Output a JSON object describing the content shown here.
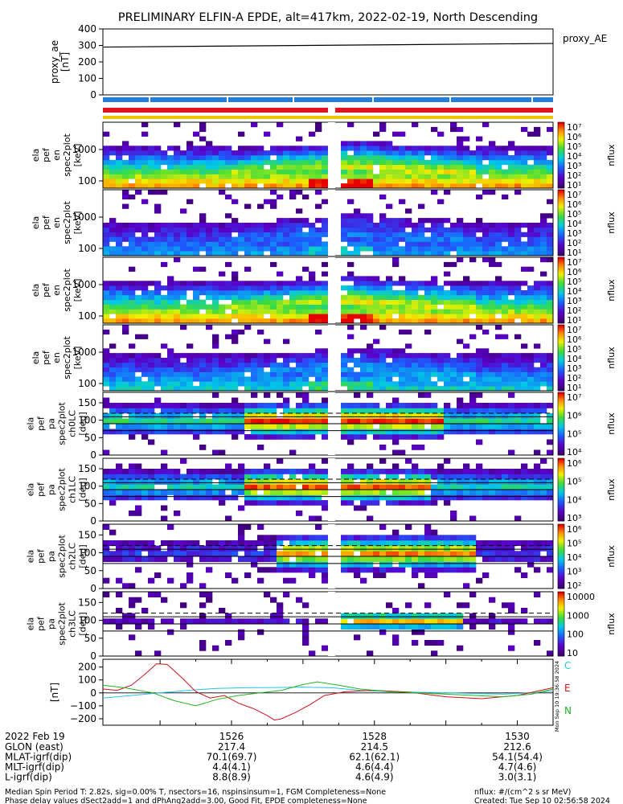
{
  "title": "PRELIMINARY ELFIN-A EPDE, alt=417km, 2022-02-19, North Descending",
  "colors": {
    "bar_blue": "#1f7fe0",
    "bar_red": "#e0141e",
    "bar_yellow": "#f2c400",
    "line_black": "#000000",
    "comp_c": "#22c4e8",
    "comp_e": "#d0101a",
    "comp_n": "#22b422"
  },
  "chart_data": [
    {
      "id": "proxy_ae",
      "type": "line",
      "ylabel": [
        "proxy_ae",
        "[nT]"
      ],
      "legend": "proxy_AE",
      "ylim": [
        0,
        400
      ],
      "yticks": [
        "400",
        "300",
        "200",
        "100",
        "0"
      ],
      "x": [
        1524.2,
        1530.5
      ],
      "y": [
        290,
        312
      ]
    },
    {
      "id": "pef_en",
      "type": "heatmap",
      "ylabel": [
        "ela",
        "pef",
        "en",
        "spec2plot",
        "[keV]"
      ],
      "yticks": [
        "1000",
        "100"
      ],
      "colorbar_label": "nflux",
      "colorbar_ticks": [
        "10⁷",
        "10⁶",
        "10⁵",
        "10⁴",
        "10³",
        "10²",
        "10¹"
      ]
    },
    {
      "id": "pef_en_2",
      "type": "heatmap",
      "ylabel": [
        "ela",
        "pef",
        "en",
        "spec2plot",
        "[keV]"
      ],
      "yticks": [
        "1000",
        "100"
      ],
      "colorbar_label": "nflux",
      "colorbar_ticks": [
        "10⁷",
        "10⁶",
        "10⁵",
        "10⁴",
        "10³",
        "10²",
        "10¹"
      ]
    },
    {
      "id": "pef_en_3",
      "type": "heatmap",
      "ylabel": [
        "ela",
        "pef",
        "en",
        "spec2plot",
        "[keV]"
      ],
      "yticks": [
        "1000",
        "100"
      ],
      "colorbar_label": "nflux",
      "colorbar_ticks": [
        "10⁷",
        "10⁶",
        "10⁵",
        "10⁴",
        "10³",
        "10²",
        "10¹"
      ]
    },
    {
      "id": "pef_en_4",
      "type": "heatmap",
      "ylabel": [
        "ela",
        "pef",
        "en",
        "spec2plot",
        "[keV]"
      ],
      "yticks": [
        "1000",
        "100"
      ],
      "colorbar_label": "nflux",
      "colorbar_ticks": [
        "10⁷",
        "10⁶",
        "10⁵",
        "10⁴",
        "10³",
        "10²",
        "10¹"
      ]
    },
    {
      "id": "pa_ch0",
      "type": "heatmap",
      "ylabel": [
        "ela",
        "pef",
        "pa",
        "spec2plot",
        "ch0LC",
        "[deg]"
      ],
      "yticks": [
        "150",
        "100",
        "50",
        "0"
      ],
      "colorbar_label": "nflux",
      "colorbar_ticks": [
        "10⁷",
        "10⁶",
        "10⁵",
        "10⁴"
      ]
    },
    {
      "id": "pa_ch1",
      "type": "heatmap",
      "ylabel": [
        "ela",
        "pef",
        "pa",
        "spec2plot",
        "ch1LC",
        "[deg]"
      ],
      "yticks": [
        "150",
        "100",
        "50",
        "0"
      ],
      "colorbar_label": "nflux",
      "colorbar_ticks": [
        "10⁶",
        "10⁵",
        "10⁴",
        "10³"
      ]
    },
    {
      "id": "pa_ch2",
      "type": "heatmap",
      "ylabel": [
        "ela",
        "pef",
        "pa",
        "spec2plot",
        "ch2LC",
        "[deg]"
      ],
      "yticks": [
        "150",
        "100",
        "50",
        "0"
      ],
      "colorbar_label": "nflux",
      "colorbar_ticks": [
        "10⁶",
        "10⁵",
        "10⁴",
        "10³",
        "10²"
      ]
    },
    {
      "id": "pa_ch3",
      "type": "heatmap",
      "ylabel": [
        "ela",
        "pef",
        "pa",
        "spec2plot",
        "ch3LC",
        "[deg]"
      ],
      "yticks": [
        "150",
        "100",
        "50",
        "0"
      ],
      "colorbar_label": "nflux",
      "colorbar_ticks": [
        "10000",
        "1000",
        "100",
        "10"
      ]
    },
    {
      "id": "fgm",
      "type": "line",
      "ylabel": [
        "[nT]"
      ],
      "ylim": [
        -250,
        260
      ],
      "yticks": [
        "200",
        "100",
        "0",
        "−100",
        "−200"
      ],
      "legend": [
        "C",
        "E",
        "N"
      ],
      "series": [
        {
          "name": "C",
          "x": [
            1524.2,
            1524.6,
            1525.0,
            1525.4,
            1525.8,
            1526.2,
            1526.6,
            1527.0,
            1527.4,
            1527.8,
            1528.2,
            1528.6,
            1529.0,
            1529.4,
            1529.8,
            1530.2,
            1530.5
          ],
          "y": [
            -40,
            -20,
            0,
            20,
            35,
            40,
            42,
            45,
            40,
            20,
            10,
            5,
            0,
            -5,
            -10,
            0,
            15
          ]
        },
        {
          "name": "E",
          "x": [
            1524.2,
            1524.4,
            1524.6,
            1524.8,
            1524.95,
            1525.1,
            1525.3,
            1525.5,
            1525.7,
            1525.9,
            1526.1,
            1526.3,
            1526.5,
            1526.6,
            1526.7,
            1526.9,
            1527.1,
            1527.3,
            1527.6,
            1528.0,
            1528.5,
            1529.0,
            1529.5,
            1530.0,
            1530.5
          ],
          "y": [
            30,
            20,
            60,
            150,
            225,
            220,
            120,
            10,
            -40,
            -20,
            -80,
            -120,
            -175,
            -210,
            -200,
            -150,
            -90,
            -20,
            10,
            20,
            5,
            -30,
            -45,
            -20,
            40
          ]
        },
        {
          "name": "N",
          "x": [
            1524.2,
            1524.5,
            1524.9,
            1525.2,
            1525.5,
            1525.8,
            1526.1,
            1526.4,
            1526.7,
            1527.0,
            1527.2,
            1527.5,
            1527.8,
            1528.2,
            1528.6,
            1529.0,
            1529.4,
            1529.8,
            1530.2,
            1530.5
          ],
          "y": [
            60,
            40,
            0,
            -60,
            -100,
            -50,
            -20,
            0,
            20,
            65,
            85,
            60,
            30,
            10,
            0,
            -10,
            -20,
            -30,
            -10,
            30
          ]
        }
      ]
    }
  ],
  "time_axis": {
    "date": "2022 Feb 19",
    "ticks": [
      "1526",
      "1528",
      "1530"
    ],
    "rows": [
      {
        "label": "GLON (east)",
        "values": [
          "217.4",
          "214.5",
          "212.6"
        ]
      },
      {
        "label": "MLAT-igrf(dip)",
        "values": [
          "70.1(69.7)",
          "62.1(62.1)",
          "54.1(54.4)"
        ]
      },
      {
        "label": "MLT-igrf(dip)",
        "values": [
          "4.4(4.1)",
          "4.6(4.4)",
          "4.7(4.6)"
        ]
      },
      {
        "label": "L-igrf(dip)",
        "values": [
          "8.8(8.9)",
          "4.6(4.9)",
          "3.0(3.1)"
        ]
      }
    ]
  },
  "footer": {
    "line1": "Median Spin Period T: 2.82s, sig=0.00% T, nsectors=16, nspinsinsum=1, FGM Completeness=None",
    "line2": "Phase delay values dSect2add=1 and dPhAng2add=3.00, Good Fit, EPDE completeness=None",
    "units": "nflux: #/(cm^2 s sr MeV)",
    "created": "Created: Tue Sep 10 02:56:58 2024",
    "stamp": "Mon Sep 10 19:36:58 2024"
  }
}
